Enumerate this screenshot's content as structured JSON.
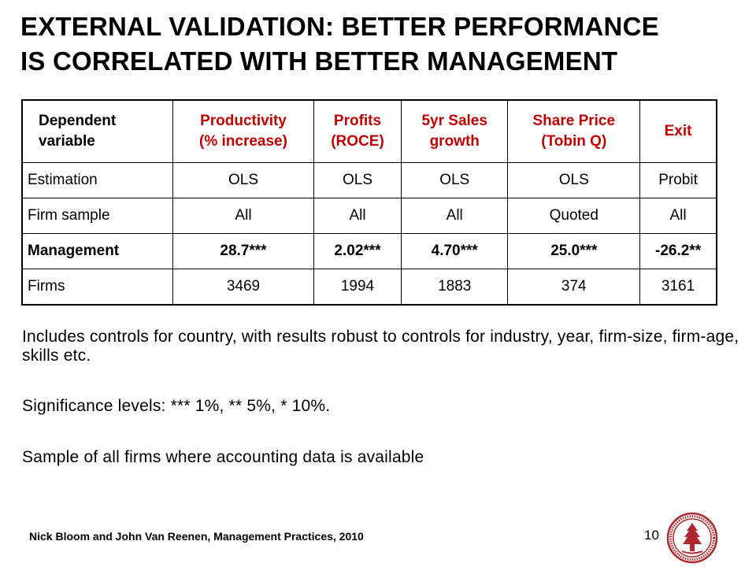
{
  "title": {
    "line1": "EXTERNAL VALIDATION: BETTER PERFORMANCE",
    "line2": "IS CORRELATED WITH BETTER MANAGEMENT"
  },
  "table": {
    "header": [
      {
        "line1": "Dependent",
        "line2": "variable"
      },
      {
        "line1": "Productivity",
        "line2": "(% increase)"
      },
      {
        "line1": "Profits",
        "line2": "(ROCE)"
      },
      {
        "line1": "5yr Sales",
        "line2": "growth"
      },
      {
        "line1": "Share Price",
        "line2": "(Tobin Q)"
      },
      {
        "line1": "Exit",
        "line2": ""
      }
    ],
    "rows": [
      [
        "Estimation",
        "OLS",
        "OLS",
        "OLS",
        "OLS",
        "Probit"
      ],
      [
        "Firm sample",
        "All",
        "All",
        "All",
        "Quoted",
        "All"
      ],
      [
        "Management",
        "28.7***",
        "2.02***",
        "4.70***",
        "25.0***",
        "-26.2**"
      ],
      [
        "Firms",
        "3469",
        "1994",
        "1883",
        "374",
        "3161"
      ]
    ],
    "header_color": "#c00000"
  },
  "notes": {
    "controls": "Includes controls for country, with results robust to controls for industry, year, firm-size, firm-age, skills etc.",
    "significance": "Significance levels: *** 1%, ** 5%, * 10%.",
    "sample": "Sample of all firms where accounting data is available"
  },
  "footer": {
    "credit": "Nick Bloom and John Van Reenen, Management Practices, 2010",
    "page_number": "10"
  },
  "seal": {
    "icon": "stanford-seal-icon",
    "color": "#b0282e"
  }
}
